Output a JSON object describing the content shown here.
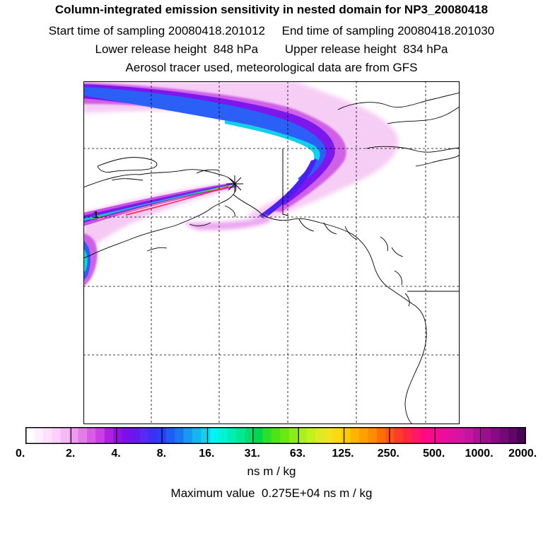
{
  "header": {
    "title": "Column-integrated emission sensitivity in nested domain for NP3_20080418",
    "line_sampling": "Start time of sampling 20080418.201012     End time of sampling 20080418.201030",
    "line_release": "Lower release height  848 hPa        Upper release height  834 hPa",
    "line_tracer": "Aerosol tracer used, meteorological data are from GFS"
  },
  "map": {
    "release_marker": "asterisk",
    "point_label": "1",
    "background_color": "#ffffff",
    "coastline_color": "#000000"
  },
  "colorbar": {
    "tick_labels": [
      "0.",
      "2.",
      "4.",
      "8.",
      "16.",
      "31.",
      "63.",
      "125.",
      "250.",
      "500.",
      "1000.",
      "2000."
    ],
    "colors": [
      "#ffffff",
      "#ffeefe",
      "#fee0fc",
      "#fbd0fa",
      "#f7b9f6",
      "#ef9af0",
      "#e27ce9",
      "#d85ce6",
      "#cc3ee3",
      "#b020e0",
      "#9410e6",
      "#7a10ea",
      "#6618ee",
      "#5a28f4",
      "#3a30f8",
      "#2a3ef6",
      "#1e5cf4",
      "#1878f2",
      "#1898f0",
      "#14b6f0",
      "#10d2ec",
      "#00f4f4",
      "#00f4d4",
      "#00eeb4",
      "#00e894",
      "#00e070",
      "#00d84c",
      "#2ce02a",
      "#4ce416",
      "#6ae812",
      "#8cec18",
      "#aaf01c",
      "#c4f01c",
      "#dcec20",
      "#f0e420",
      "#ffd810",
      "#ffc800",
      "#ffb400",
      "#ffa000",
      "#ff8c00",
      "#ff7000",
      "#ff5418",
      "#ff3c28",
      "#ff2840",
      "#ff1868",
      "#ff0a82",
      "#f80a8e",
      "#ee0c98",
      "#e210a0",
      "#d414a2",
      "#c414a0",
      "#b0109a",
      "#9c0e90",
      "#880a84",
      "#740878",
      "#600668",
      "#4a0454"
    ],
    "units": "ns m / kg"
  },
  "footer": {
    "max_value": "Maximum value  0.275E+04 ns m / kg"
  }
}
